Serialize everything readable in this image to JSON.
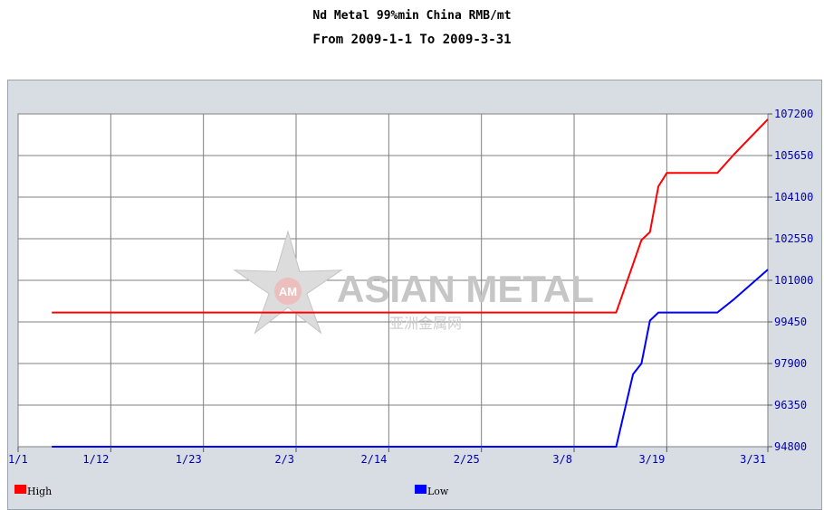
{
  "header": {
    "title": "Nd Metal  99%min China  RMB/mt",
    "subtitle": "From 2009-1-1 To 2009-3-31"
  },
  "watermark": {
    "logo_initials": "AM",
    "brand": "ASIAN METAL",
    "brand_cn": "亚洲金属网"
  },
  "colors": {
    "high": "#ff0000",
    "low": "#0000ff",
    "axis_label": "#0000aa",
    "frame_bg": "#d8dde3",
    "plot_bg": "#ffffff",
    "grid": "#7f7f7f"
  },
  "chart_data": {
    "type": "line",
    "title": "Nd Metal  99%min China  RMB/mt",
    "subtitle": "From 2009-1-1 To 2009-3-31",
    "xlabel": "",
    "ylabel": "",
    "x_tick_labels": [
      "1/1",
      "1/12",
      "1/23",
      "2/3",
      "2/14",
      "2/25",
      "3/8",
      "3/19",
      "3/31"
    ],
    "x_tick_dates": [
      "2009-01-01",
      "2009-01-12",
      "2009-01-23",
      "2009-02-03",
      "2009-02-14",
      "2009-02-25",
      "2009-03-08",
      "2009-03-19",
      "2009-03-31"
    ],
    "y_tick_labels": [
      "94800",
      "96350",
      "97900",
      "99450",
      "101000",
      "102550",
      "104100",
      "105650",
      "107200"
    ],
    "ylim": [
      94800,
      107200
    ],
    "xlim": [
      "2009-01-01",
      "2009-03-31"
    ],
    "grid": true,
    "legend_position": "bottom",
    "series": [
      {
        "name": "High",
        "color": "#ff0000",
        "points": [
          {
            "x": "2009-01-05",
            "y": 99800
          },
          {
            "x": "2009-03-13",
            "y": 99800
          },
          {
            "x": "2009-03-16",
            "y": 102500
          },
          {
            "x": "2009-03-17",
            "y": 102800
          },
          {
            "x": "2009-03-18",
            "y": 104500
          },
          {
            "x": "2009-03-19",
            "y": 105000
          },
          {
            "x": "2009-03-25",
            "y": 105000
          },
          {
            "x": "2009-03-27",
            "y": 105700
          },
          {
            "x": "2009-03-31",
            "y": 107000
          }
        ]
      },
      {
        "name": "Low",
        "color": "#0000ff",
        "points": [
          {
            "x": "2009-01-05",
            "y": 94800
          },
          {
            "x": "2009-03-13",
            "y": 94800
          },
          {
            "x": "2009-03-15",
            "y": 97500
          },
          {
            "x": "2009-03-16",
            "y": 97900
          },
          {
            "x": "2009-03-17",
            "y": 99500
          },
          {
            "x": "2009-03-18",
            "y": 99800
          },
          {
            "x": "2009-03-25",
            "y": 99800
          },
          {
            "x": "2009-03-27",
            "y": 100300
          },
          {
            "x": "2009-03-31",
            "y": 101400
          }
        ]
      }
    ]
  }
}
